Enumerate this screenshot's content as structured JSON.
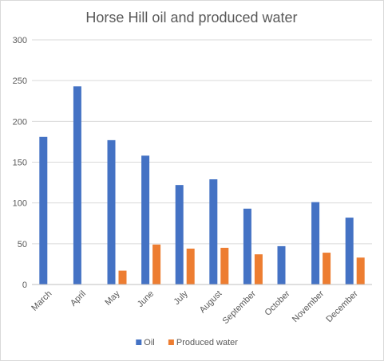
{
  "chart_data": {
    "type": "bar",
    "title": "Horse Hill oil and produced water",
    "categories": [
      "March",
      "April",
      "May",
      "June",
      "July",
      "August",
      "September",
      "October",
      "November",
      "December"
    ],
    "series": [
      {
        "name": "Oil",
        "color": "#4472c4",
        "values": [
          181,
          243,
          177,
          158,
          122,
          129,
          93,
          47,
          101,
          82
        ]
      },
      {
        "name": "Produced water",
        "color": "#ed7d31",
        "values": [
          null,
          null,
          17,
          49,
          44,
          45,
          37,
          null,
          39,
          33
        ]
      }
    ],
    "ylim": [
      0,
      300
    ],
    "yticks": [
      0,
      50,
      100,
      150,
      200,
      250,
      300
    ],
    "grid": true,
    "legend": "bottom"
  }
}
